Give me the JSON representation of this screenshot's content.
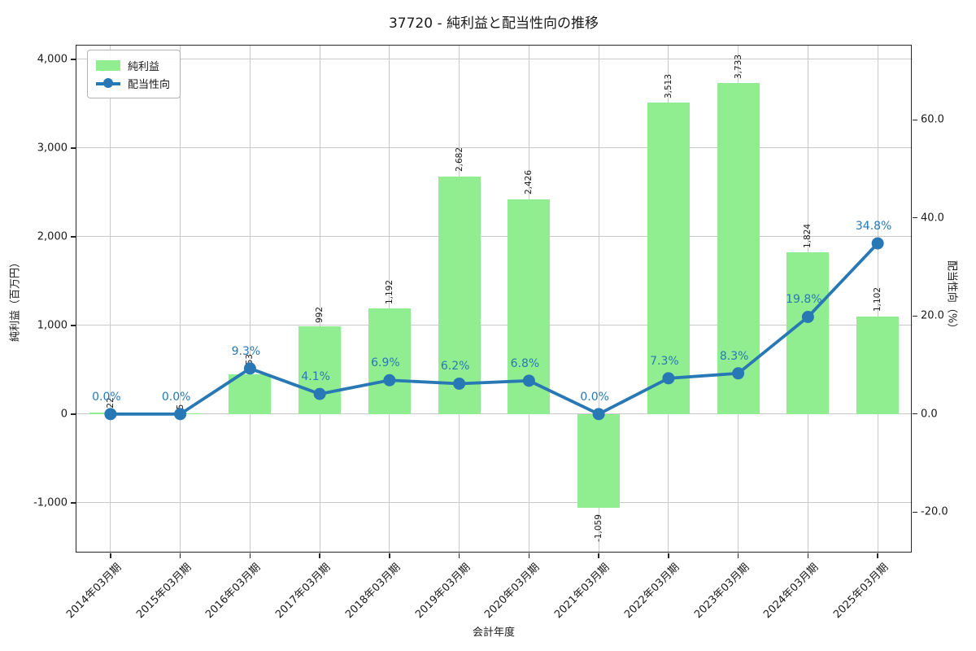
{
  "chart_data": {
    "type": "bar+line",
    "title": "37720 - 純利益と配当性向の推移",
    "categories": [
      "2014年03月期",
      "2015年03月期",
      "2016年03月期",
      "2017年03月期",
      "2018年03月期",
      "2019年03月期",
      "2020年03月期",
      "2021年03月期",
      "2022年03月期",
      "2023年03月期",
      "2024年03月期",
      "2025年03月期"
    ],
    "series": [
      {
        "name": "純利益",
        "type": "bar",
        "axis": "left",
        "color": "#90EE90",
        "values": [
          22,
          5,
          453,
          992,
          1192,
          2682,
          2426,
          -1059,
          3513,
          3733,
          1824,
          1102
        ],
        "labels": [
          "22",
          "5",
          "453",
          "992",
          "1,192",
          "2,682",
          "2,426",
          "-1,059",
          "3,513",
          "3,733",
          "1,824",
          "1,102"
        ]
      },
      {
        "name": "配当性向",
        "type": "line",
        "axis": "right",
        "color": "#2878b5",
        "values": [
          0.0,
          0.0,
          9.3,
          4.1,
          6.9,
          6.2,
          6.8,
          0.0,
          7.3,
          8.3,
          19.8,
          34.8
        ],
        "labels": [
          "0.0%",
          "0.0%",
          "9.3%",
          "4.1%",
          "6.9%",
          "6.2%",
          "6.8%",
          "0.0%",
          "7.3%",
          "8.3%",
          "19.8%",
          "34.8%"
        ]
      }
    ],
    "axes": {
      "x": {
        "label": "会計年度"
      },
      "left": {
        "label": "純利益（百万円）",
        "tick_labels": [
          "-1,000",
          "0",
          "1,000",
          "2,000",
          "3,000",
          "4,000"
        ],
        "tick_values": [
          -1000,
          0,
          1000,
          2000,
          3000,
          4000
        ],
        "range": [
          -1569,
          4165
        ]
      },
      "right": {
        "label": "配当性向（%）",
        "tick_labels": [
          "-20.0",
          "0.0",
          "20.0",
          "40.0",
          "60.0"
        ],
        "tick_values": [
          -20,
          0,
          20,
          40,
          60
        ],
        "range": [
          -28.4,
          75.3
        ]
      }
    },
    "legend": {
      "position": "upper left"
    },
    "grid": true,
    "colors": {
      "grid": "#c9c9c9",
      "spine": "#262626",
      "text": "#1a1a1a",
      "percent_label": "#2878b5"
    }
  }
}
